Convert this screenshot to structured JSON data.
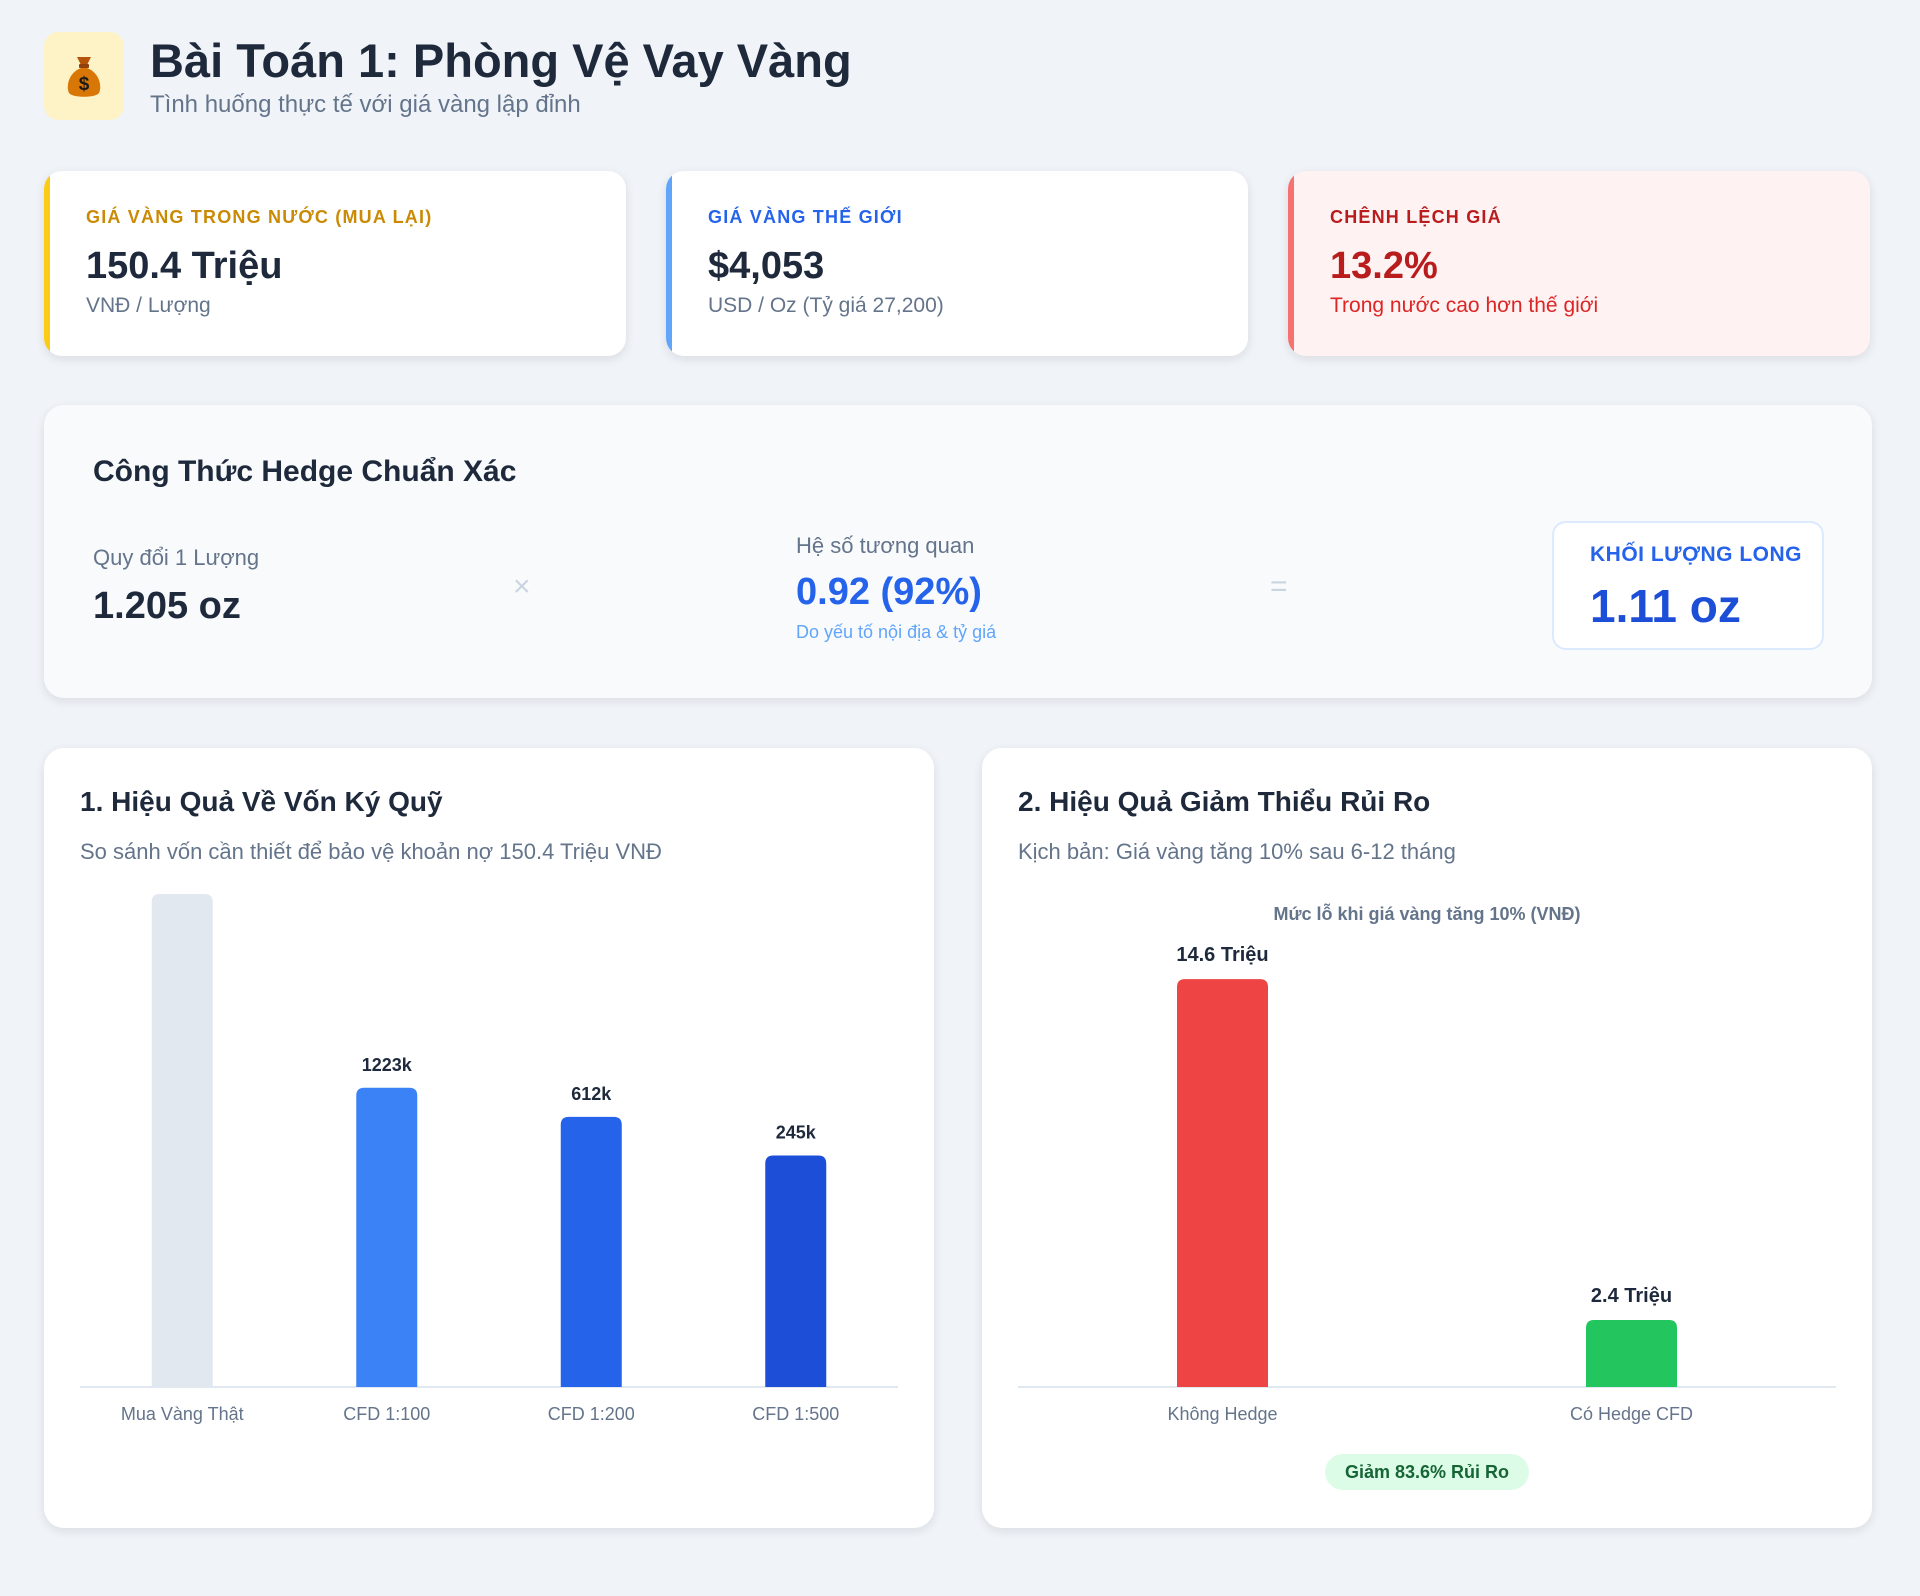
{
  "header": {
    "icon": "money-bag-icon",
    "title": "Bài Toán 1: Phòng Vệ Vay Vàng",
    "subtitle": "Tình huống thực tế với giá vàng lập đỉnh"
  },
  "stats": [
    {
      "label": "GIÁ VÀNG TRONG NƯỚC (MUA LẠI)",
      "value": "150.4 Triệu",
      "sub": "VNĐ / Lượng",
      "accent": "#ca8a04"
    },
    {
      "label": "GIÁ VÀNG THẾ GIỚI",
      "value": "$4,053",
      "sub": "USD / Oz (Tỷ giá 27,200)",
      "accent": "#2563eb"
    },
    {
      "label": "CHÊNH LỆCH GIÁ",
      "value": "13.2%",
      "sub": "Trong nước cao hơn thế giới",
      "accent": "#dc2626"
    }
  ],
  "formula": {
    "title": "Công Thức Hedge Chuẩn Xác",
    "convert_label": "Quy đổi 1 Lượng",
    "convert_value": "1.205 oz",
    "multiply": "×",
    "corr_label": "Hệ số tương quan",
    "corr_value": "0.92 (92%)",
    "corr_note": "Do yếu tố nội địa & tỷ giá",
    "equals": "=",
    "result_label": "KHỐI LƯỢNG LONG",
    "result_value": "1.11 oz"
  },
  "panel1": {
    "title": "1. Hiệu Quả Về Vốn Ký Quỹ",
    "subtitle": "So sánh vốn cần thiết để bảo vệ khoản nợ 150.4 Triệu VNĐ"
  },
  "panel2": {
    "title": "2. Hiệu Quả Giảm Thiểu Rủi Ro",
    "subtitle": "Kịch bản: Giá vàng tăng 10% sau 6-12 tháng",
    "badge": "Giảm 83.6% Rủi Ro"
  },
  "colors": {
    "gray": "#e2e8f0",
    "blue1": "#3b82f6",
    "blue2": "#2563eb",
    "blue3": "#1d4ed8",
    "red": "#ef4444",
    "green": "#22c55e",
    "badge_bg": "#dcfce7",
    "badge_text": "#166534"
  },
  "chart_data": [
    {
      "type": "bar",
      "categories": [
        "Mua Vàng Thật",
        "CFD 1:100",
        "CFD 1:200",
        "CFD 1:500"
      ],
      "values": [
        122300,
        1223,
        612,
        245
      ],
      "data_labels": [
        "",
        "1223k",
        "612k",
        "245k"
      ],
      "colors": [
        "#e2e8f0",
        "#3b82f6",
        "#2563eb",
        "#1d4ed8"
      ],
      "title": "",
      "xlabel": "",
      "ylabel": "",
      "yscale": "log",
      "grid": false
    },
    {
      "type": "bar",
      "title": "Mức lỗ khi giá vàng tăng 10% (VNĐ)",
      "categories": [
        "Không Hedge",
        "Có Hedge CFD"
      ],
      "values": [
        14.6,
        2.4
      ],
      "data_labels": [
        "14.6 Triệu",
        "2.4 Triệu"
      ],
      "colors": [
        "#ef4444",
        "#22c55e"
      ],
      "ylim": [
        0,
        16.5
      ],
      "grid": false
    }
  ]
}
